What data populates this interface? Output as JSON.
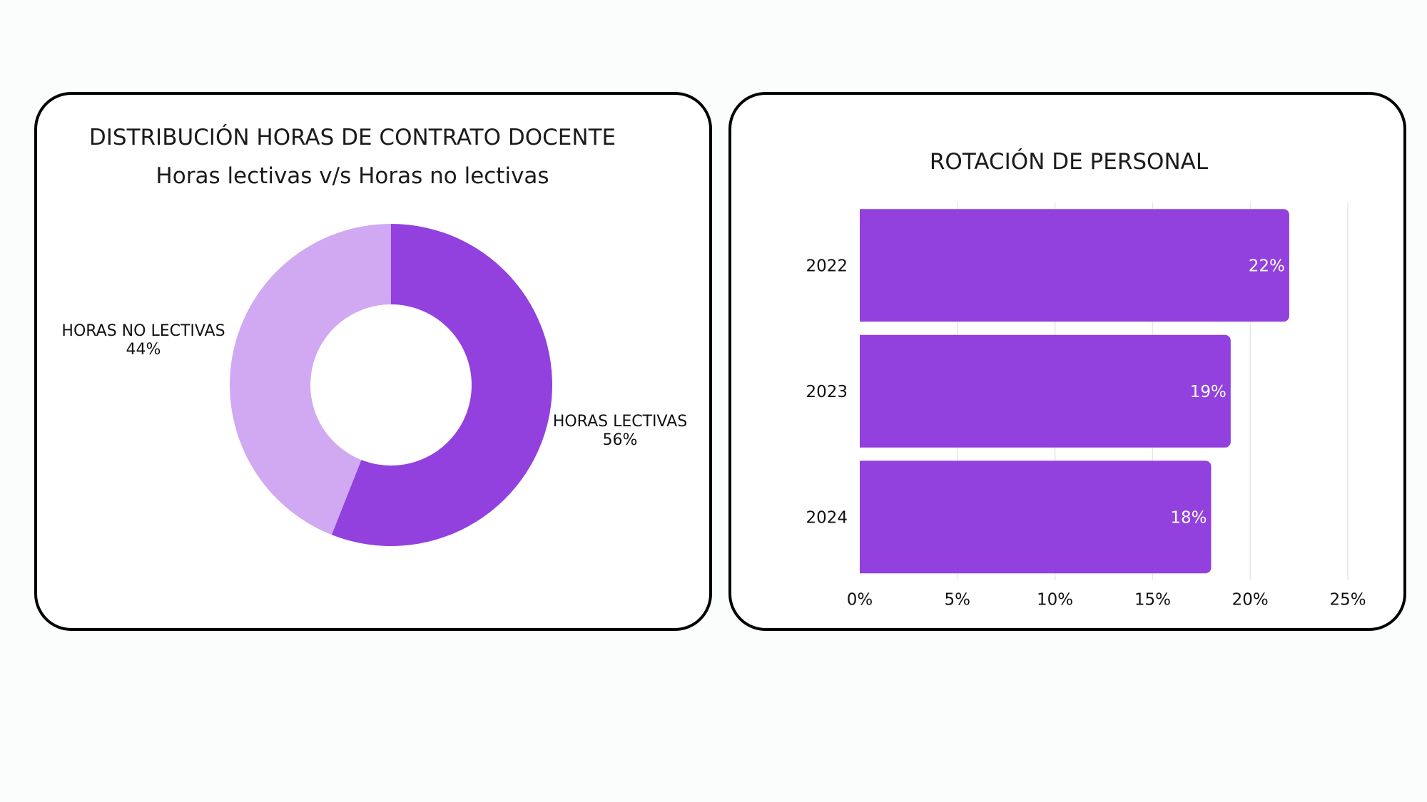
{
  "colors": {
    "primary": "#9240de",
    "light": "#d0a9f2",
    "grid": "#e6e6e6",
    "border": "#000000"
  },
  "chart_data": [
    {
      "type": "pie",
      "title": "DISTRIBUCIÓN HORAS DE CONTRATO DOCENTE",
      "subtitle": "Horas lectivas v/s Horas no lectivas",
      "donut": true,
      "slices": [
        {
          "label": "HORAS LECTIVAS",
          "value": 56,
          "value_label": "56%",
          "color": "#9240de"
        },
        {
          "label": "HORAS NO LECTIVAS",
          "value": 44,
          "value_label": "44%",
          "color": "#d0a9f2"
        }
      ]
    },
    {
      "type": "bar",
      "orientation": "horizontal",
      "title": "ROTACIÓN DE PERSONAL",
      "categories": [
        "2022",
        "2023",
        "2024"
      ],
      "values": [
        22,
        19,
        18
      ],
      "value_labels": [
        "22%",
        "19%",
        "18%"
      ],
      "xlim": [
        0,
        25
      ],
      "x_ticks": [
        "0%",
        "5%",
        "10%",
        "15%",
        "20%",
        "25%"
      ],
      "grid": true,
      "color": "#9240de"
    }
  ]
}
